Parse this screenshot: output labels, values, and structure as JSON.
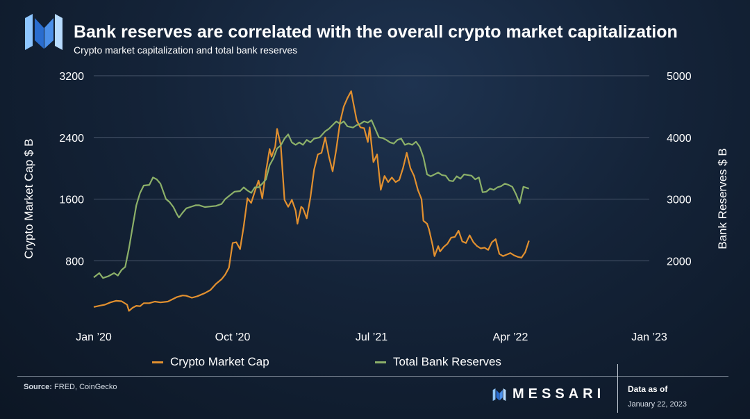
{
  "header": {
    "title": "Bank reserves are correlated with the overall crypto market capitalization",
    "subtitle": "Crypto market capitalization and total bank reserves"
  },
  "footer": {
    "source_label": "Source:",
    "source_text": "FRED, CoinGecko",
    "brand": "MESSARI",
    "as_of_label": "Data as of",
    "as_of_date": "January 22, 2023"
  },
  "colors": {
    "crypto": "#e2902f",
    "reserves": "#8cb069",
    "grid": "#48556a"
  },
  "chart_data": {
    "type": "line",
    "title": "Bank reserves are correlated with the overall crypto market capitalization",
    "ylabel_left": "Crypto Market Cap $ B",
    "ylabel_right": "Bank Reserves $ B",
    "ylim_left": [
      0,
      3200
    ],
    "ylim_right": [
      1000,
      5000
    ],
    "yticks_left": [
      800,
      1600,
      2400,
      3200
    ],
    "yticks_right": [
      2000,
      3000,
      4000,
      5000
    ],
    "x_ticks": [
      {
        "label": "Jan ’20",
        "x": 0
      },
      {
        "label": "Oct ’20",
        "x": 0.75
      },
      {
        "label": "Jul ’21",
        "x": 1.5
      },
      {
        "label": "Apr ’22",
        "x": 2.25
      },
      {
        "label": "Jan ’23",
        "x": 3.0
      }
    ],
    "legend": [
      "Crypto Market Cap",
      "Total Bank Reserves"
    ],
    "series": [
      {
        "name": "Crypto Market Cap",
        "axis": "left",
        "color": "#e2902f",
        "points": [
          [
            0,
            200
          ],
          [
            0.03,
            215
          ],
          [
            0.06,
            230
          ],
          [
            0.09,
            260
          ],
          [
            0.12,
            280
          ],
          [
            0.15,
            275
          ],
          [
            0.18,
            230
          ],
          [
            0.19,
            150
          ],
          [
            0.21,
            190
          ],
          [
            0.23,
            215
          ],
          [
            0.25,
            210
          ],
          [
            0.27,
            250
          ],
          [
            0.3,
            250
          ],
          [
            0.33,
            270
          ],
          [
            0.36,
            260
          ],
          [
            0.4,
            270
          ],
          [
            0.45,
            330
          ],
          [
            0.48,
            350
          ],
          [
            0.5,
            345
          ],
          [
            0.53,
            320
          ],
          [
            0.56,
            340
          ],
          [
            0.6,
            380
          ],
          [
            0.63,
            420
          ],
          [
            0.66,
            500
          ],
          [
            0.69,
            560
          ],
          [
            0.71,
            620
          ],
          [
            0.73,
            710
          ],
          [
            0.75,
            1030
          ],
          [
            0.77,
            1040
          ],
          [
            0.79,
            950
          ],
          [
            0.81,
            1250
          ],
          [
            0.83,
            1610
          ],
          [
            0.85,
            1550
          ],
          [
            0.87,
            1700
          ],
          [
            0.89,
            1840
          ],
          [
            0.91,
            1610
          ],
          [
            0.93,
            1960
          ],
          [
            0.95,
            2250
          ],
          [
            0.96,
            2150
          ],
          [
            0.98,
            2280
          ],
          [
            0.99,
            2510
          ],
          [
            1.01,
            2300
          ],
          [
            1.03,
            1590
          ],
          [
            1.05,
            1500
          ],
          [
            1.07,
            1590
          ],
          [
            1.09,
            1450
          ],
          [
            1.1,
            1280
          ],
          [
            1.12,
            1500
          ],
          [
            1.13,
            1480
          ],
          [
            1.15,
            1350
          ],
          [
            1.17,
            1620
          ],
          [
            1.19,
            1980
          ],
          [
            1.21,
            2180
          ],
          [
            1.23,
            2200
          ],
          [
            1.25,
            2400
          ],
          [
            1.27,
            2150
          ],
          [
            1.29,
            1960
          ],
          [
            1.31,
            2250
          ],
          [
            1.33,
            2600
          ],
          [
            1.35,
            2800
          ],
          [
            1.37,
            2910
          ],
          [
            1.39,
            3000
          ],
          [
            1.4,
            2870
          ],
          [
            1.42,
            2620
          ],
          [
            1.44,
            2530
          ],
          [
            1.46,
            2520
          ],
          [
            1.48,
            2340
          ],
          [
            1.49,
            2530
          ],
          [
            1.51,
            2080
          ],
          [
            1.53,
            2180
          ],
          [
            1.55,
            1720
          ],
          [
            1.57,
            1900
          ],
          [
            1.59,
            1820
          ],
          [
            1.61,
            1880
          ],
          [
            1.63,
            1820
          ],
          [
            1.65,
            1850
          ],
          [
            1.67,
            2000
          ],
          [
            1.69,
            2200
          ],
          [
            1.71,
            2000
          ],
          [
            1.73,
            1900
          ],
          [
            1.75,
            1720
          ],
          [
            1.77,
            1600
          ],
          [
            1.78,
            1320
          ],
          [
            1.8,
            1280
          ],
          [
            1.81,
            1210
          ],
          [
            1.83,
            1000
          ],
          [
            1.84,
            860
          ],
          [
            1.86,
            990
          ],
          [
            1.87,
            920
          ],
          [
            1.89,
            980
          ],
          [
            1.91,
            1020
          ],
          [
            1.93,
            1100
          ],
          [
            1.95,
            1110
          ],
          [
            1.97,
            1190
          ],
          [
            1.99,
            1050
          ],
          [
            2.01,
            1030
          ],
          [
            2.03,
            1130
          ],
          [
            2.05,
            1040
          ],
          [
            2.07,
            990
          ],
          [
            2.09,
            960
          ],
          [
            2.11,
            970
          ],
          [
            2.13,
            940
          ],
          [
            2.15,
            1040
          ],
          [
            2.17,
            1080
          ],
          [
            2.19,
            890
          ],
          [
            2.21,
            860
          ],
          [
            2.23,
            880
          ],
          [
            2.25,
            900
          ],
          [
            2.27,
            870
          ],
          [
            2.29,
            850
          ],
          [
            2.31,
            840
          ],
          [
            2.33,
            910
          ],
          [
            2.35,
            1060
          ]
        ]
      },
      {
        "name": "Total Bank Reserves",
        "axis": "right",
        "color": "#8cb069",
        "points": [
          [
            0,
            1730
          ],
          [
            0.03,
            1800
          ],
          [
            0.05,
            1720
          ],
          [
            0.08,
            1750
          ],
          [
            0.11,
            1800
          ],
          [
            0.13,
            1760
          ],
          [
            0.15,
            1850
          ],
          [
            0.17,
            1900
          ],
          [
            0.19,
            2200
          ],
          [
            0.21,
            2550
          ],
          [
            0.23,
            2900
          ],
          [
            0.25,
            3100
          ],
          [
            0.27,
            3220
          ],
          [
            0.3,
            3230
          ],
          [
            0.32,
            3350
          ],
          [
            0.34,
            3320
          ],
          [
            0.36,
            3250
          ],
          [
            0.39,
            3000
          ],
          [
            0.41,
            2950
          ],
          [
            0.43,
            2870
          ],
          [
            0.45,
            2750
          ],
          [
            0.46,
            2700
          ],
          [
            0.48,
            2780
          ],
          [
            0.5,
            2850
          ],
          [
            0.52,
            2870
          ],
          [
            0.55,
            2900
          ],
          [
            0.57,
            2900
          ],
          [
            0.6,
            2870
          ],
          [
            0.63,
            2880
          ],
          [
            0.66,
            2890
          ],
          [
            0.69,
            2920
          ],
          [
            0.71,
            3000
          ],
          [
            0.73,
            3050
          ],
          [
            0.76,
            3120
          ],
          [
            0.79,
            3130
          ],
          [
            0.81,
            3190
          ],
          [
            0.83,
            3140
          ],
          [
            0.85,
            3100
          ],
          [
            0.87,
            3190
          ],
          [
            0.89,
            3190
          ],
          [
            0.91,
            3250
          ],
          [
            0.93,
            3320
          ],
          [
            0.95,
            3550
          ],
          [
            0.97,
            3660
          ],
          [
            0.99,
            3820
          ],
          [
            1.01,
            3870
          ],
          [
            1.03,
            3980
          ],
          [
            1.05,
            4050
          ],
          [
            1.07,
            3920
          ],
          [
            1.09,
            3880
          ],
          [
            1.11,
            3920
          ],
          [
            1.13,
            3880
          ],
          [
            1.15,
            3960
          ],
          [
            1.17,
            3920
          ],
          [
            1.19,
            3980
          ],
          [
            1.22,
            4000
          ],
          [
            1.25,
            4100
          ],
          [
            1.27,
            4140
          ],
          [
            1.29,
            4200
          ],
          [
            1.31,
            4260
          ],
          [
            1.33,
            4220
          ],
          [
            1.35,
            4260
          ],
          [
            1.37,
            4180
          ],
          [
            1.4,
            4160
          ],
          [
            1.42,
            4200
          ],
          [
            1.44,
            4220
          ],
          [
            1.46,
            4260
          ],
          [
            1.48,
            4240
          ],
          [
            1.5,
            4280
          ],
          [
            1.52,
            4140
          ],
          [
            1.54,
            4000
          ],
          [
            1.56,
            3990
          ],
          [
            1.58,
            3960
          ],
          [
            1.6,
            3920
          ],
          [
            1.62,
            3900
          ],
          [
            1.64,
            3960
          ],
          [
            1.66,
            3980
          ],
          [
            1.68,
            3880
          ],
          [
            1.7,
            3900
          ],
          [
            1.72,
            3880
          ],
          [
            1.74,
            3930
          ],
          [
            1.76,
            3850
          ],
          [
            1.78,
            3680
          ],
          [
            1.8,
            3400
          ],
          [
            1.82,
            3370
          ],
          [
            1.84,
            3400
          ],
          [
            1.86,
            3430
          ],
          [
            1.88,
            3390
          ],
          [
            1.9,
            3380
          ],
          [
            1.92,
            3300
          ],
          [
            1.94,
            3290
          ],
          [
            1.96,
            3370
          ],
          [
            1.98,
            3330
          ],
          [
            2.0,
            3400
          ],
          [
            2.02,
            3390
          ],
          [
            2.04,
            3380
          ],
          [
            2.06,
            3320
          ],
          [
            2.08,
            3350
          ],
          [
            2.1,
            3110
          ],
          [
            2.12,
            3120
          ],
          [
            2.14,
            3170
          ],
          [
            2.16,
            3150
          ],
          [
            2.18,
            3190
          ],
          [
            2.2,
            3210
          ],
          [
            2.22,
            3250
          ],
          [
            2.24,
            3230
          ],
          [
            2.26,
            3200
          ],
          [
            2.28,
            3080
          ],
          [
            2.3,
            2930
          ],
          [
            2.32,
            3200
          ],
          [
            2.35,
            3170
          ]
        ]
      }
    ]
  }
}
